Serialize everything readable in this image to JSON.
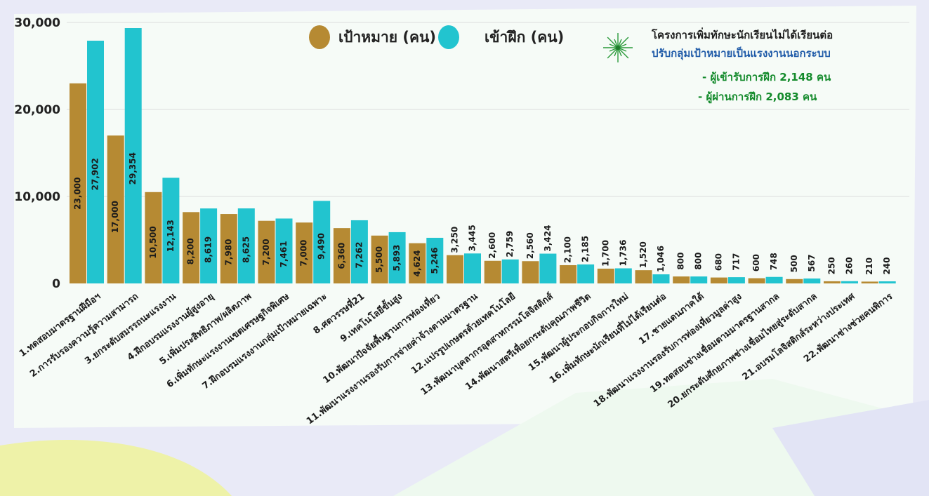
{
  "colors": {
    "target": "#b68a33",
    "trained": "#22c4cf",
    "note_dark": "#1d1d1d",
    "note_blue": "#1f5aa8",
    "note_green": "#138a2b"
  },
  "legend": {
    "target_label": "เป้าหมาย (คน)",
    "trained_label": "เข้าฝึก (คน)"
  },
  "note": {
    "title": "โครงการเพิ่มทักษะนักเรียนไม่ได้เรียนต่อ",
    "subtitle": "ปรับกลุ่มเป้าหมายเป็นแรงงานนอกระบบ",
    "line1": "- ผู้เข้ารับการฝึก 2,148 คน",
    "line2": "- ผู้ผ่านการฝึก 2,083 คน",
    "star_icon": "green-starburst-icon"
  },
  "chart_data": {
    "type": "bar",
    "title": "",
    "xlabel": "",
    "ylabel": "",
    "ylim": [
      0,
      30000
    ],
    "yticks": [
      0,
      10000,
      20000,
      30000
    ],
    "ytick_labels": [
      "0",
      "10,000",
      "20,000",
      "30,000"
    ],
    "grid": true,
    "legend_position": "top-center",
    "categories": [
      "1.ทดสอบมาตรฐานฝีมือฯ",
      "2.การรับรองความรู้ความสามารถ",
      "3.ยกระดับสมรรถนะแรงงาน",
      "4.ฝึกอบรมแรงงานผู้สูงอายุ",
      "5.เพิ่มประสิทธิภาพ/ผลิตภาพ",
      "6.เพิ่มทักษะแรงงานเขตเศรษฐกิจพิเศษ",
      "7.ฝึกอบรมแรงงานกลุ่มเป้าหมายเฉพาะ",
      "8.ศตวรรษที่21",
      "9.เทคโนโลยีขั้นสูง",
      "10.พัฒนาปัจจัยพื้นฐานการท่องเที่ยว",
      "11.พัฒนาแรงงานรองรับการจ่ายค่าจ้างตามมาตรฐาน",
      "12.แปรรูปเกษตรด้วยเทคโนโลยี",
      "13.พัฒนาบุคลากรอุตสาหกรรมโลจิสติกส์",
      "14.พัฒนาสตรีเพื่อยกระดับคุณภาพชีวิต",
      "15.พัฒนาผู้ประกอบกิจการใหม่",
      "16.เพิ่มทักษะนักเรียนที่ไม่ได้เรียนต่อ",
      "17.ชายแดนภาคใต้",
      "18.พัฒนาแรงงานรองรับการท่องเที่ยวมูลค่าสูง",
      "19.ทดสอบช่างเชื่อมตามมาตรฐานสากล",
      "20.ยกระดับศักยภาพช่างเชื่อมไทยสู่ระดับสากล",
      "21.อบรมโลจิสติกส์ระหว่างประเทศ",
      "22.พัฒนาช่างช่วยคนพิการ"
    ],
    "series": [
      {
        "name": "เป้าหมาย (คน)",
        "values": [
          23000,
          17000,
          10500,
          8200,
          7980,
          7200,
          7000,
          6360,
          5500,
          4624,
          3250,
          2600,
          2560,
          2100,
          1700,
          1520,
          800,
          680,
          600,
          500,
          250,
          210
        ],
        "labels": [
          "23,000",
          "17,000",
          "10,500",
          "8,200",
          "7,980",
          "7,200",
          "7,000",
          "6,360",
          "5,500",
          "4,624",
          "3,250",
          "2,600",
          "2,560",
          "2,100",
          "1,700",
          "1,520",
          "800",
          "680",
          "600",
          "500",
          "250",
          "210"
        ]
      },
      {
        "name": "เข้าฝึก (คน)",
        "values": [
          27902,
          29354,
          12143,
          8619,
          8625,
          7461,
          9490,
          7262,
          5893,
          5246,
          3445,
          2759,
          3424,
          2185,
          1736,
          1046,
          800,
          717,
          748,
          567,
          260,
          240
        ],
        "labels": [
          "27,902",
          "29,354",
          "12,143",
          "8,619",
          "8,625",
          "7,461",
          "9,490",
          "7,262",
          "5,893",
          "5,246",
          "3,445",
          "2,759",
          "3,424",
          "2,185",
          "1,736",
          "1,046",
          "800",
          "717",
          "748",
          "567",
          "260",
          "240"
        ]
      }
    ]
  }
}
